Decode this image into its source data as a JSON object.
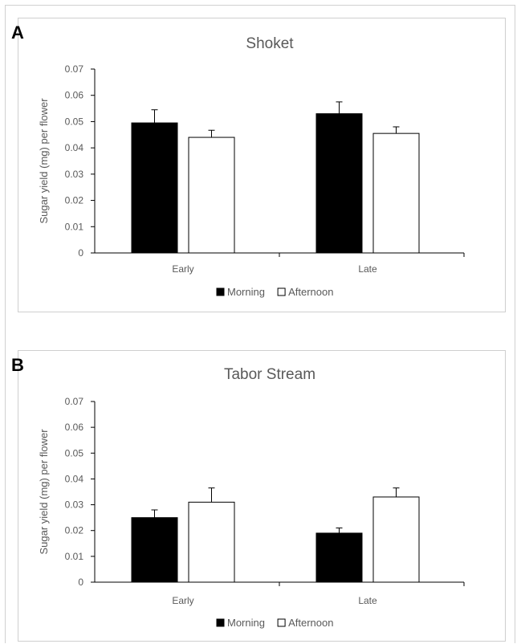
{
  "chart_data": [
    {
      "panel": "A",
      "type": "bar",
      "title": "Shoket",
      "xlabel": "",
      "ylabel": "Sugar yield (mg) per flower",
      "ylim": [
        0,
        0.07
      ],
      "yticks": [
        "0",
        "0.01",
        "0.02",
        "0.03",
        "0.04",
        "0.05",
        "0.06",
        "0.07"
      ],
      "categories": [
        "Early",
        "Late"
      ],
      "series": [
        {
          "name": "Morning",
          "color": "#000000",
          "values": [
            0.0495,
            0.053
          ],
          "errors": [
            0.005,
            0.0045
          ]
        },
        {
          "name": "Afternoon",
          "color": "#ffffff",
          "values": [
            0.044,
            0.0455
          ],
          "errors": [
            0.0027,
            0.0025
          ]
        }
      ],
      "legend": "bottom-center"
    },
    {
      "panel": "B",
      "type": "bar",
      "title": "Tabor Stream",
      "xlabel": "",
      "ylabel": "Sugar yield (mg) per flower",
      "ylim": [
        0,
        0.07
      ],
      "yticks": [
        "0",
        "0.01",
        "0.02",
        "0.03",
        "0.04",
        "0.05",
        "0.06",
        "0.07"
      ],
      "categories": [
        "Early",
        "Late"
      ],
      "series": [
        {
          "name": "Morning",
          "color": "#000000",
          "values": [
            0.025,
            0.019
          ],
          "errors": [
            0.003,
            0.002
          ]
        },
        {
          "name": "Afternoon",
          "color": "#ffffff",
          "values": [
            0.031,
            0.033
          ],
          "errors": [
            0.0055,
            0.0035
          ]
        }
      ],
      "legend": "bottom-center"
    }
  ]
}
